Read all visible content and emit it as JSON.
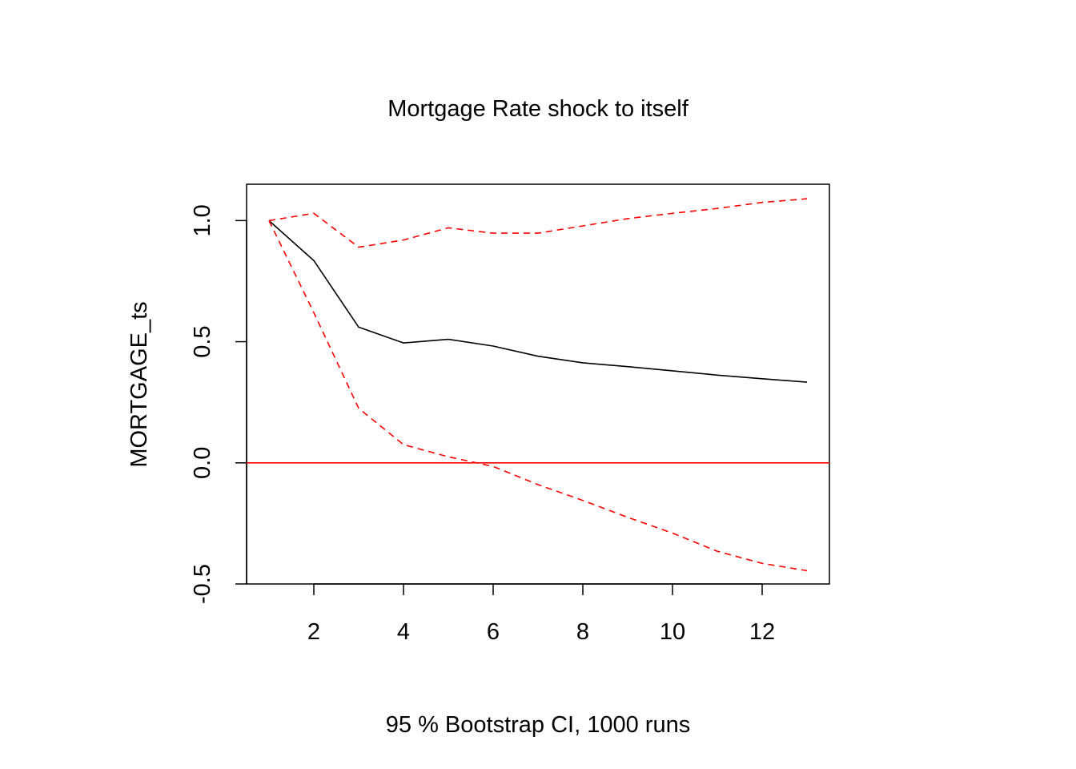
{
  "chart_data": {
    "type": "line",
    "title": "Mortgage Rate shock to itself",
    "xlabel": "95 % Bootstrap CI,  1000 runs",
    "ylabel": "MORTGAGE_ts",
    "xlim": [
      0.5,
      13.5
    ],
    "ylim": [
      -0.5,
      1.15
    ],
    "x_ticks": [
      2,
      4,
      6,
      8,
      10,
      12
    ],
    "x_tick_labels": [
      "2",
      "4",
      "6",
      "8",
      "10",
      "12"
    ],
    "y_ticks": [
      -0.5,
      0.0,
      0.5,
      1.0
    ],
    "y_tick_labels": [
      "-0.5",
      "0.0",
      "0.5",
      "1.0"
    ],
    "x": [
      1,
      2,
      3,
      4,
      5,
      6,
      7,
      8,
      9,
      10,
      11,
      12,
      13
    ],
    "series": [
      {
        "role": "irf",
        "color": "#000000",
        "dash": "solid",
        "values": [
          1.0,
          0.835,
          0.56,
          0.495,
          0.51,
          0.482,
          0.44,
          0.413,
          0.397,
          0.38,
          0.362,
          0.347,
          0.333
        ]
      },
      {
        "role": "upper",
        "color": "#ff0000",
        "dash": "dashed",
        "values": [
          1.0,
          1.03,
          0.89,
          0.92,
          0.97,
          0.948,
          0.948,
          0.978,
          1.008,
          1.03,
          1.05,
          1.075,
          1.09
        ]
      },
      {
        "role": "lower",
        "color": "#ff0000",
        "dash": "dashed",
        "values": [
          1.0,
          0.62,
          0.225,
          0.075,
          0.025,
          -0.015,
          -0.09,
          -0.155,
          -0.225,
          -0.29,
          -0.365,
          -0.415,
          -0.445
        ]
      }
    ],
    "reference_line": {
      "y": 0,
      "color": "#ff0000"
    },
    "grid": false,
    "legend": "none"
  }
}
